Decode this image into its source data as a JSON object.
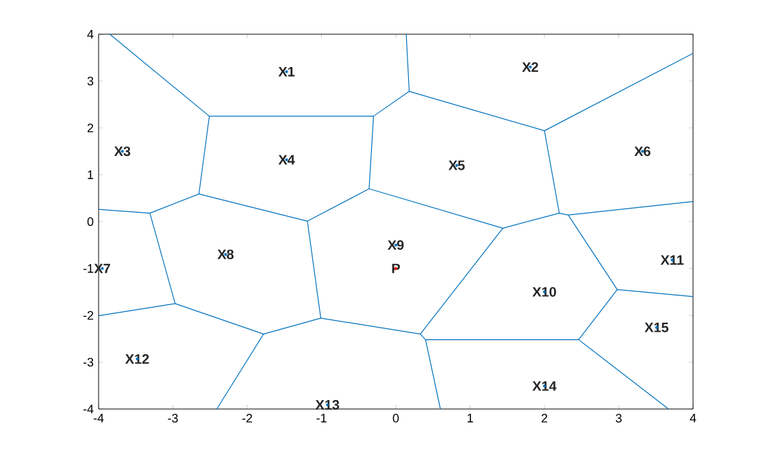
{
  "chart_data": {
    "type": "line",
    "xlim": [
      -4,
      4
    ],
    "ylim": [
      -4,
      4
    ],
    "xticks": [
      -4,
      -3,
      -2,
      -1,
      0,
      1,
      2,
      3,
      4
    ],
    "yticks": [
      -4,
      -3,
      -2,
      -1,
      0,
      1,
      2,
      3,
      4
    ],
    "grid": false,
    "series": [
      {
        "color": "#0072bd",
        "line_style": "solid",
        "marker": "none",
        "x": [
          -3.85,
          -2.51,
          -0.3,
          0.18,
          0.14,
          null,
          0.18,
          2.0,
          4,
          null,
          2.0,
          2.2,
          2.32,
          4,
          null,
          2.2,
          1.44,
          0.33,
          -1.01,
          -1.19,
          -2.65,
          -3.31,
          -4,
          null,
          2.32,
          2.98,
          4,
          null,
          2.98,
          2.46,
          3.67,
          null,
          2.46,
          0.4,
          0.33,
          null,
          0.4,
          0.6,
          null,
          -1.01,
          -1.78,
          -2.41,
          null,
          -1.78,
          -2.97,
          -4,
          null,
          -2.97,
          -3.31,
          null,
          -2.65,
          -2.51,
          null,
          -1.19,
          -0.36,
          -0.3,
          null,
          -0.36,
          1.44
        ],
        "values": [
          4,
          2.25,
          2.25,
          2.78,
          4,
          null,
          2.78,
          1.94,
          3.59,
          null,
          1.94,
          0.18,
          0.14,
          0.43,
          null,
          0.18,
          -0.14,
          -2.4,
          -2.06,
          0.01,
          0.59,
          0.18,
          0.26,
          null,
          0.14,
          -1.45,
          -1.6,
          null,
          -1.45,
          -2.52,
          -4,
          null,
          -2.52,
          -2.52,
          -2.4,
          null,
          -2.52,
          -4,
          null,
          -2.06,
          -2.4,
          -4,
          null,
          -2.4,
          -1.75,
          -2.01,
          null,
          -1.75,
          0.18,
          null,
          0.59,
          2.25,
          null,
          0.01,
          0.7,
          2.25,
          null,
          0.7,
          -0.14
        ]
      },
      {
        "type": "scatter",
        "color": "#0072bd",
        "marker": "circle",
        "x": [
          -1.47,
          1.81,
          -3.68,
          -1.47,
          0.82,
          3.32,
          -3.95,
          -2.29,
          0.0,
          2.0,
          3.72,
          -3.48,
          -0.92,
          2.0,
          3.51
        ],
        "values": [
          3.2,
          3.3,
          1.5,
          1.32,
          1.2,
          1.5,
          -1.0,
          -0.7,
          -0.5,
          -1.5,
          -0.82,
          -2.93,
          -3.91,
          -3.51,
          -2.26
        ]
      },
      {
        "type": "scatter",
        "color": "#ff0000",
        "marker": "circle",
        "x": [
          0.0
        ],
        "values": [
          -1.0
        ]
      }
    ],
    "annotations": [
      {
        "text": "X1",
        "x": -1.47,
        "y": 3.2
      },
      {
        "text": "X2",
        "x": 1.81,
        "y": 3.3
      },
      {
        "text": "X3",
        "x": -3.68,
        "y": 1.5
      },
      {
        "text": "X4",
        "x": -1.47,
        "y": 1.32
      },
      {
        "text": "X5",
        "x": 0.82,
        "y": 1.2
      },
      {
        "text": "X6",
        "x": 3.32,
        "y": 1.5
      },
      {
        "text": "X7",
        "x": -3.95,
        "y": -1.0
      },
      {
        "text": "X8",
        "x": -2.29,
        "y": -0.7
      },
      {
        "text": "X9",
        "x": 0.0,
        "y": -0.5
      },
      {
        "text": "X10",
        "x": 2.0,
        "y": -1.5
      },
      {
        "text": "X11",
        "x": 3.72,
        "y": -0.82
      },
      {
        "text": "X12",
        "x": -3.48,
        "y": -2.93
      },
      {
        "text": "X13",
        "x": -0.92,
        "y": -3.91
      },
      {
        "text": "X14",
        "x": 2.0,
        "y": -3.51
      },
      {
        "text": "X15",
        "x": 3.51,
        "y": -2.26
      },
      {
        "text": "P",
        "x": 0.0,
        "y": -1.0
      }
    ]
  }
}
